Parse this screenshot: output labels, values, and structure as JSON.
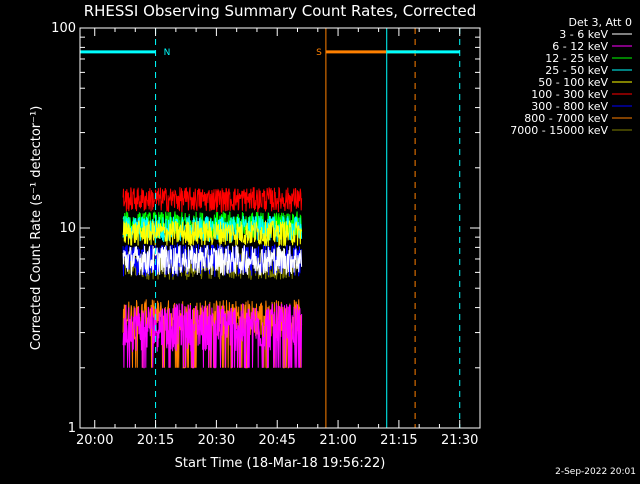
{
  "colors": {
    "background": "#000000",
    "axes": "#ffffff",
    "night": "#00ffff",
    "saa": "#ff8000"
  },
  "chart_data": {
    "type": "line",
    "title": "RHESSI Observing Summary Count Rates, Corrected",
    "xlabel": "Start Time (18-Mar-18 19:56:22)",
    "ylabel": "Corrected Count Rate (s⁻¹ detector⁻¹)",
    "yscale": "log",
    "ylim": [
      1,
      100
    ],
    "xlim": [
      "19:56:22",
      "21:35:00"
    ],
    "x_ticks": [
      "20:00",
      "20:15",
      "20:30",
      "20:45",
      "21:00",
      "21:15",
      "21:30"
    ],
    "y_ticks": [
      "1",
      "10",
      "100"
    ],
    "grid": false,
    "legend_title": "Det 3, Att 0",
    "legend_position": "top-right",
    "data_interval": [
      "20:07",
      "20:51"
    ],
    "series": [
      {
        "name": "3 - 6 keV",
        "color": "#ffffff",
        "level": 7.0,
        "spread": 1.2
      },
      {
        "name": "6 - 12 keV",
        "color": "#ff00ff",
        "level": 3.3,
        "spread": 0.9
      },
      {
        "name": "12 - 25 keV",
        "color": "#00ff00",
        "level": 10.5,
        "spread": 1.6
      },
      {
        "name": "25 - 50 keV",
        "color": "#00ffff",
        "level": 10.0,
        "spread": 1.5
      },
      {
        "name": "50 - 100 keV",
        "color": "#ffff00",
        "level": 9.5,
        "spread": 1.4
      },
      {
        "name": "100 - 300 keV",
        "color": "#ff0000",
        "level": 14.0,
        "spread": 2.0
      },
      {
        "name": "300 - 800 keV",
        "color": "#0000ff",
        "level": 7.0,
        "spread": 1.3
      },
      {
        "name": "800 - 7000 keV",
        "color": "#ff8000",
        "level": 3.6,
        "spread": 0.8
      },
      {
        "name": "7000 - 15000 keV",
        "color": "#808000",
        "level": 6.5,
        "spread": 1.0
      }
    ],
    "annotations": [
      {
        "label": "N",
        "type": "night",
        "start": "19:56:22",
        "end": "20:15"
      },
      {
        "label": "S",
        "type": "saa",
        "start": "20:57",
        "end": "21:19"
      },
      {
        "label": "",
        "type": "night",
        "start": "21:12",
        "end": "21:30"
      }
    ],
    "footer_date": "2-Sep-2022 20:01"
  }
}
